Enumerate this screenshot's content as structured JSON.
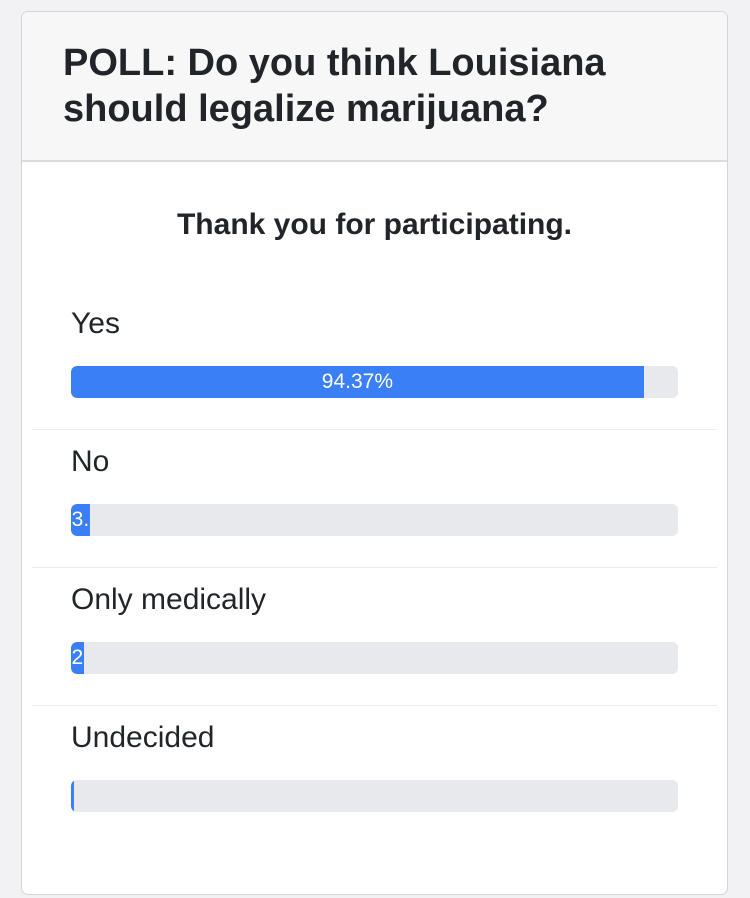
{
  "poll": {
    "title": "POLL: Do you think Louisiana should legalize marijuana?",
    "thanks_message": "Thank you for participating.",
    "options": [
      {
        "label": "Yes",
        "percent": 94.37,
        "fill_text": "94.37%"
      },
      {
        "label": "No",
        "percent": 3.1,
        "fill_text": "3."
      },
      {
        "label": "Only medically",
        "percent": 2.1,
        "fill_text": "2"
      },
      {
        "label": "Undecided",
        "percent": 0.43,
        "fill_text": ""
      }
    ]
  },
  "colors": {
    "bar_fill": "#3a7ff6",
    "bar_track": "#e8e9ec",
    "header_bg": "#f7f7f7"
  }
}
